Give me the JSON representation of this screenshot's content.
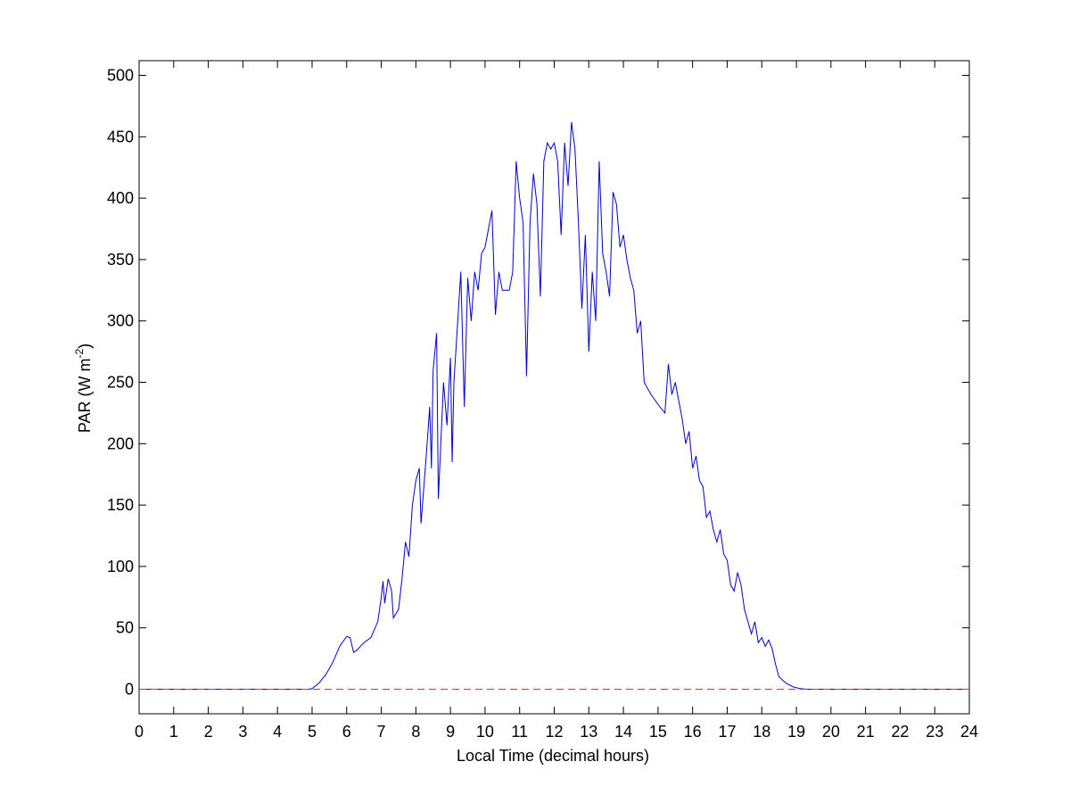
{
  "chart_data": {
    "type": "line",
    "xlabel": "Local Time (decimal hours)",
    "ylabel": {
      "text": "PAR (W m",
      "sup": "-2",
      "end": ")"
    },
    "xlim": [
      0,
      24
    ],
    "xticks": [
      0,
      1,
      2,
      3,
      4,
      5,
      6,
      7,
      8,
      9,
      10,
      11,
      12,
      13,
      14,
      15,
      16,
      17,
      18,
      19,
      20,
      21,
      22,
      23,
      24
    ],
    "ylim": [
      -20,
      512
    ],
    "yticks": [
      0,
      50,
      100,
      150,
      200,
      250,
      300,
      350,
      400,
      450,
      500
    ],
    "series": [
      {
        "color": "#0000cc",
        "dash": false,
        "x": [
          0,
          4.9,
          5.0,
          5.2,
          5.4,
          5.6,
          5.8,
          6.0,
          6.1,
          6.2,
          6.3,
          6.5,
          6.7,
          6.9,
          7.0,
          7.05,
          7.1,
          7.2,
          7.3,
          7.35,
          7.5,
          7.6,
          7.7,
          7.8,
          7.9,
          8.0,
          8.1,
          8.15,
          8.3,
          8.4,
          8.45,
          8.5,
          8.6,
          8.65,
          8.8,
          8.9,
          9.0,
          9.05,
          9.1,
          9.3,
          9.4,
          9.5,
          9.6,
          9.7,
          9.8,
          9.9,
          10.0,
          10.1,
          10.2,
          10.3,
          10.4,
          10.5,
          10.7,
          10.8,
          10.9,
          11.0,
          11.1,
          11.2,
          11.3,
          11.4,
          11.5,
          11.6,
          11.7,
          11.8,
          11.9,
          12.0,
          12.1,
          12.2,
          12.3,
          12.4,
          12.5,
          12.6,
          12.7,
          12.8,
          12.9,
          13.0,
          13.1,
          13.2,
          13.3,
          13.4,
          13.5,
          13.6,
          13.7,
          13.8,
          13.9,
          14.0,
          14.1,
          14.2,
          14.3,
          14.4,
          14.5,
          14.6,
          14.8,
          15.0,
          15.2,
          15.3,
          15.4,
          15.5,
          15.6,
          15.7,
          15.8,
          15.9,
          16.0,
          16.1,
          16.2,
          16.3,
          16.4,
          16.5,
          16.6,
          16.7,
          16.8,
          16.9,
          17.0,
          17.1,
          17.2,
          17.3,
          17.4,
          17.5,
          17.6,
          17.7,
          17.8,
          17.9,
          18.0,
          18.1,
          18.2,
          18.3,
          18.4,
          18.5,
          18.7,
          18.9,
          19.1,
          19.3,
          24
        ],
        "values": [
          0,
          0,
          0.5,
          5,
          12,
          22,
          35,
          43,
          42,
          30,
          32,
          38,
          42,
          55,
          75,
          88,
          70,
          90,
          80,
          58,
          65,
          90,
          120,
          108,
          150,
          170,
          180,
          135,
          190,
          230,
          180,
          260,
          290,
          155,
          250,
          215,
          270,
          185,
          250,
          340,
          230,
          335,
          300,
          340,
          325,
          355,
          360,
          375,
          390,
          305,
          340,
          325,
          325,
          340,
          430,
          400,
          380,
          255,
          380,
          420,
          395,
          320,
          430,
          445,
          440,
          445,
          430,
          370,
          445,
          410,
          462,
          440,
          380,
          310,
          370,
          275,
          340,
          300,
          430,
          355,
          340,
          320,
          405,
          395,
          360,
          370,
          350,
          335,
          325,
          290,
          300,
          250,
          240,
          232,
          225,
          265,
          240,
          250,
          235,
          220,
          200,
          210,
          180,
          190,
          170,
          165,
          140,
          145,
          130,
          120,
          130,
          110,
          105,
          85,
          80,
          95,
          85,
          65,
          55,
          45,
          55,
          38,
          42,
          35,
          40,
          33,
          20,
          10,
          5,
          2,
          0.5,
          0,
          0
        ]
      },
      {
        "color": "#e03030",
        "dash": true,
        "x": [
          0,
          24
        ],
        "values": [
          0,
          0
        ]
      }
    ]
  }
}
